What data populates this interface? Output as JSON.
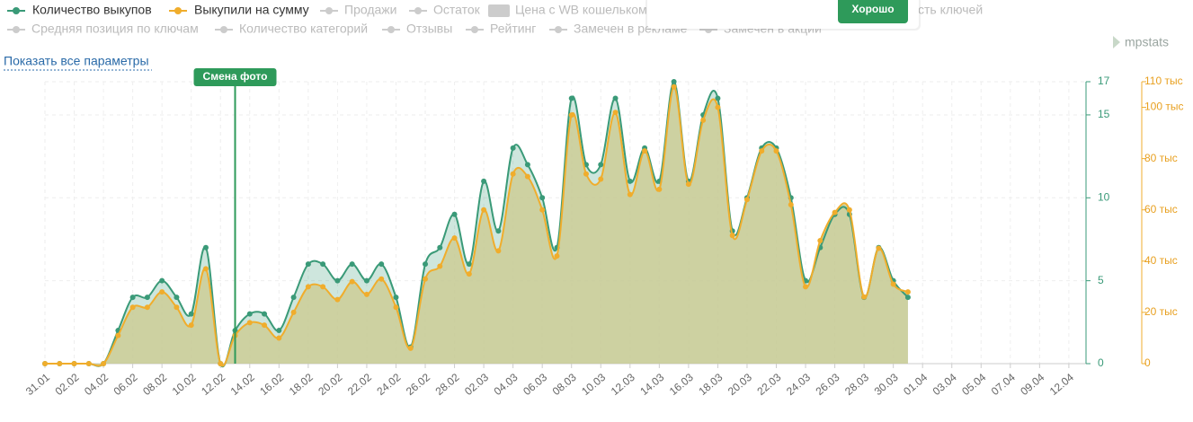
{
  "chart_data": {
    "type": "line",
    "legend_inactive": [
      "Продажи",
      "Остаток",
      "Цена с WB кошельком",
      "Средняя позиция по ключам",
      "Количество категорий",
      "Отзывы",
      "Рейтинг",
      "Замечен в рекламе",
      "Замечен в акции"
    ],
    "legend_fragment": "сть ключей",
    "show_all": "Показать все параметры",
    "brand": "mpstats",
    "popup_button": "Хорошо",
    "annotation": "Смена фото",
    "categories": [
      "31.01",
      null,
      "02.02",
      null,
      "04.02",
      null,
      "06.02",
      null,
      "08.02",
      null,
      "10.02",
      null,
      "12.02",
      null,
      "14.02",
      null,
      "16.02",
      null,
      "18.02",
      null,
      "20.02",
      null,
      "22.02",
      null,
      "24.02",
      null,
      "26.02",
      null,
      "28.02",
      null,
      "02.03",
      null,
      "04.03",
      null,
      "06.03",
      null,
      "08.03",
      null,
      "10.03",
      null,
      "12.03",
      null,
      "14.03",
      null,
      "16.03",
      null,
      "18.03",
      null,
      "20.03",
      null,
      "22.03",
      null,
      "24.03",
      null,
      "26.03",
      null,
      "28.03",
      null,
      "30.03",
      null,
      "01.04",
      null,
      "03.04",
      null,
      "05.04",
      null,
      "07.04",
      null,
      "09.04",
      null,
      "12.04"
    ],
    "series": [
      {
        "name": "Количество выкупов",
        "color": "#3a9a78",
        "values": [
          0,
          0,
          0,
          0,
          0,
          2,
          4,
          4,
          5,
          4,
          3,
          7,
          0,
          2,
          3,
          3,
          2,
          4,
          6,
          6,
          5,
          6,
          5,
          6,
          4,
          1,
          6,
          7,
          9,
          6,
          11,
          8,
          13,
          12,
          10,
          7,
          16,
          12,
          12,
          16,
          11,
          13,
          11,
          17,
          11,
          15,
          16,
          8,
          10,
          13,
          13,
          10,
          5,
          7,
          9,
          9,
          4,
          7,
          5,
          4,
          null,
          null,
          null,
          null,
          null,
          null,
          null,
          null,
          null,
          null,
          null
        ]
      },
      {
        "name": "Выкупили на сумму",
        "color": "#f0ad2c",
        "axis": "y2",
        "values": [
          0,
          0,
          0,
          0,
          0,
          11,
          22,
          22,
          28,
          22,
          15,
          37,
          0,
          11,
          16,
          15,
          10,
          20,
          30,
          30,
          25,
          32,
          27,
          33,
          22,
          6,
          33,
          38,
          49,
          35,
          60,
          44,
          74,
          73,
          60,
          42,
          97,
          74,
          72,
          98,
          66,
          83,
          68,
          108,
          70,
          95,
          100,
          50,
          64,
          83,
          83,
          62,
          30,
          48,
          59,
          60,
          26,
          45,
          31,
          28,
          null,
          null,
          null,
          null,
          null,
          null,
          null,
          null,
          null,
          null,
          null
        ]
      }
    ],
    "ylim": [
      0,
      17
    ],
    "yticks": [
      0,
      5,
      10,
      15,
      17
    ],
    "y2lim": [
      0,
      110
    ],
    "y2ticks": [
      0,
      {
        "value": 20,
        "label": "20 тыс"
      },
      {
        "value": 40,
        "label": "40 тыс"
      },
      {
        "value": 60,
        "label": "60 тыс"
      },
      {
        "value": 80,
        "label": "80 тыс"
      },
      {
        "value": 100,
        "label": "100 тыс"
      },
      {
        "value": 110,
        "label": "110 тыс"
      }
    ],
    "grid": true
  }
}
